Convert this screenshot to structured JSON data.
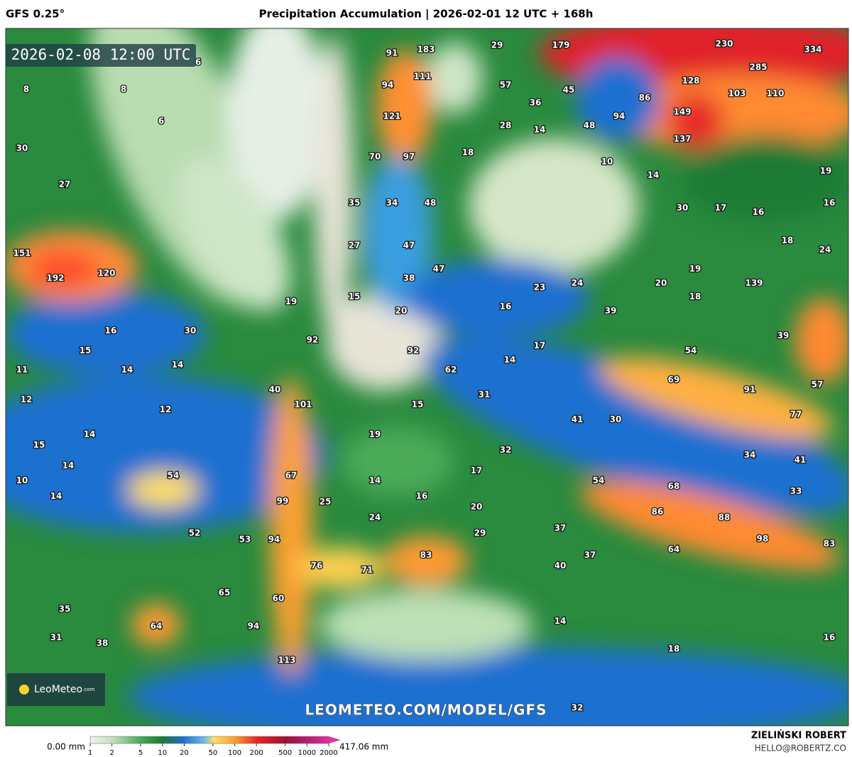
{
  "header": {
    "model": "GFS 0.25°",
    "title": "Precipitation Accumulation | 2026-02-01 12 UTC + 168h"
  },
  "map": {
    "valid_time": "2026-02-08 12:00 UTC",
    "labels": [
      8,
      8,
      6,
      6,
      30,
      27,
      91,
      183,
      29,
      179,
      230,
      334,
      111,
      94,
      57,
      45,
      128,
      285,
      103,
      110,
      36,
      86,
      94,
      149,
      121,
      28,
      14,
      48,
      137,
      70,
      97,
      18,
      10,
      14,
      19,
      35,
      34,
      48,
      30,
      17,
      16,
      16,
      151,
      192,
      120,
      27,
      47,
      18,
      24,
      47,
      38,
      19,
      139,
      20,
      23,
      24,
      18,
      19,
      15,
      20,
      16,
      39,
      16,
      30,
      92,
      39,
      17,
      54,
      15,
      14,
      14,
      11,
      92,
      62,
      14,
      40,
      12,
      12,
      101,
      31,
      69,
      91,
      57,
      15,
      77,
      41,
      30,
      14,
      15,
      19,
      32,
      14,
      54,
      67,
      17,
      34,
      41,
      10,
      14,
      14,
      54,
      68,
      33,
      99,
      25,
      16,
      20,
      86,
      88,
      24,
      52,
      29,
      37,
      53,
      94,
      98,
      83,
      64,
      83,
      37,
      76,
      71,
      40,
      65,
      60,
      35,
      64,
      94,
      14,
      31,
      38,
      16,
      18,
      113,
      32
    ],
    "watermark": "LEOMETEO.COM/MODEL/GFS",
    "logo": "LeoMeteo",
    "logo_suffix": ".com"
  },
  "colorbar": {
    "min_label": "0.00 mm",
    "max_label": "417.06 mm",
    "scale": "log",
    "range": [
      1,
      2000
    ],
    "ticks": [
      1,
      2,
      5,
      10,
      20,
      50,
      100,
      200,
      500,
      1000,
      2000
    ]
  },
  "credit": {
    "name": "ZIELIŃSKI ROBERT",
    "email": "HELLO@ROBERTZ.CO"
  }
}
